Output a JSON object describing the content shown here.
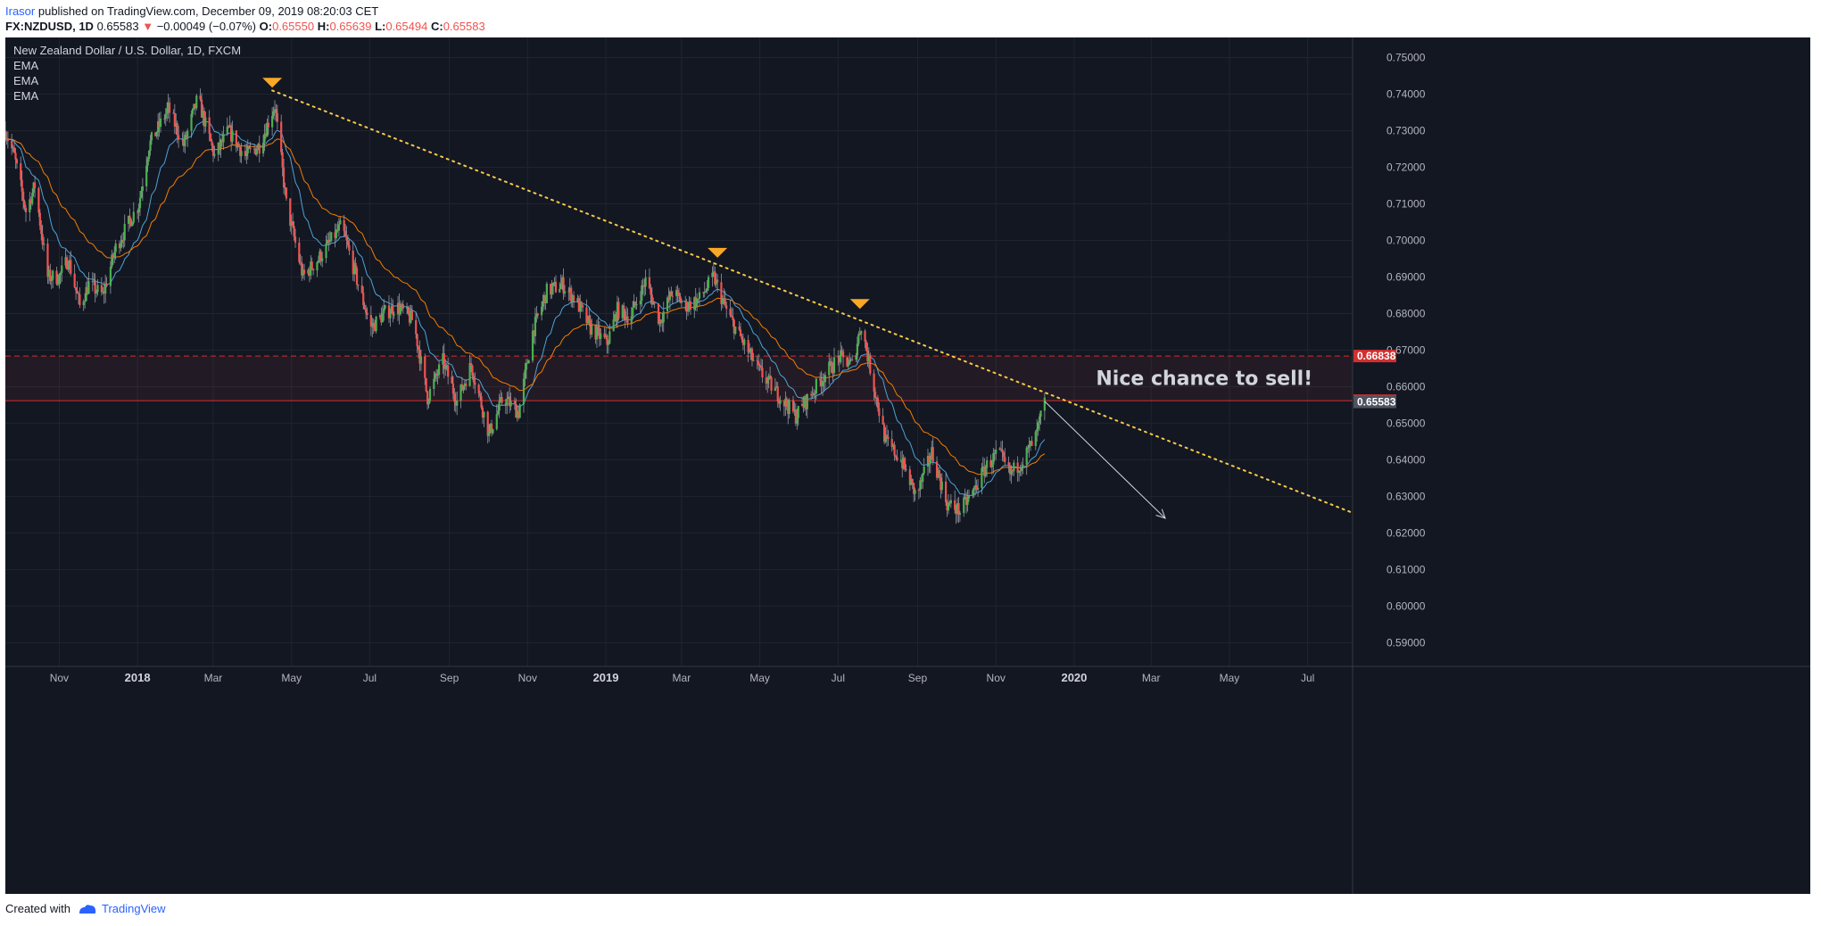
{
  "header": {
    "author": "Irasor",
    "published_text": "published on TradingView.com, December 09, 2019 08:20:03 CET",
    "symbol": "FX:NZDUSD, 1D",
    "last": "0.65583",
    "change_arrow": "▼",
    "change": "−0.00049 (−0.07%)",
    "o_label": "O:",
    "o_value": "0.65550",
    "h_label": "H:",
    "h_value": "0.65639",
    "l_label": "L:",
    "l_value": "0.65494",
    "c_label": "C:",
    "c_value": "0.65583"
  },
  "footer": {
    "created_with": "Created with",
    "brand": "TradingView"
  },
  "chart_data": {
    "type": "candlestick",
    "title": "New Zealand Dollar / U.S. Dollar, 1D, FXCM",
    "indicators": [
      "EMA",
      "EMA",
      "EMA"
    ],
    "y_axis": {
      "ticks": [
        "0.75000",
        "0.74000",
        "0.73000",
        "0.72000",
        "0.71000",
        "0.70000",
        "0.69000",
        "0.68000",
        "0.67000",
        "0.66000",
        "0.65000",
        "0.64000",
        "0.63000",
        "0.62000",
        "0.61000",
        "0.60000",
        "0.59000"
      ],
      "ylim": [
        0.5835,
        0.7555
      ],
      "position": "right"
    },
    "x_axis": {
      "ticks": [
        "Nov",
        "2018",
        "Mar",
        "May",
        "Jul",
        "Sep",
        "Nov",
        "2019",
        "Mar",
        "May",
        "Jul",
        "Sep",
        "Nov",
        "2020",
        "Mar",
        "May",
        "Jul"
      ],
      "tick_dates": [
        "2017-11-01",
        "2018-01-01",
        "2018-03-01",
        "2018-05-01",
        "2018-07-01",
        "2018-09-01",
        "2018-11-01",
        "2019-01-01",
        "2019-03-01",
        "2019-05-01",
        "2019-07-01",
        "2019-09-01",
        "2019-11-01",
        "2020-01-01",
        "2020-03-01",
        "2020-05-01",
        "2020-07-01"
      ],
      "xlim": [
        "2017-09-20",
        "2020-08-05"
      ]
    },
    "price_path": [
      {
        "date": "2017-09-20",
        "price": 0.73
      },
      {
        "date": "2017-09-27",
        "price": 0.723
      },
      {
        "date": "2017-10-06",
        "price": 0.708
      },
      {
        "date": "2017-10-13",
        "price": 0.715
      },
      {
        "date": "2017-10-23",
        "price": 0.69
      },
      {
        "date": "2017-11-01",
        "price": 0.69
      },
      {
        "date": "2017-11-08",
        "price": 0.695
      },
      {
        "date": "2017-11-17",
        "price": 0.682
      },
      {
        "date": "2017-11-24",
        "price": 0.688
      },
      {
        "date": "2017-12-05",
        "price": 0.685
      },
      {
        "date": "2017-12-15",
        "price": 0.698
      },
      {
        "date": "2018-01-02",
        "price": 0.71
      },
      {
        "date": "2018-01-10",
        "price": 0.726
      },
      {
        "date": "2018-01-25",
        "price": 0.736
      },
      {
        "date": "2018-02-06",
        "price": 0.726
      },
      {
        "date": "2018-02-17",
        "price": 0.739
      },
      {
        "date": "2018-03-02",
        "price": 0.723
      },
      {
        "date": "2018-03-13",
        "price": 0.73
      },
      {
        "date": "2018-03-26",
        "price": 0.723
      },
      {
        "date": "2018-04-06",
        "price": 0.726
      },
      {
        "date": "2018-04-18",
        "price": 0.737
      },
      {
        "date": "2018-04-27",
        "price": 0.71
      },
      {
        "date": "2018-05-10",
        "price": 0.69
      },
      {
        "date": "2018-05-22",
        "price": 0.695
      },
      {
        "date": "2018-06-01",
        "price": 0.7
      },
      {
        "date": "2018-06-09",
        "price": 0.704
      },
      {
        "date": "2018-06-22",
        "price": 0.688
      },
      {
        "date": "2018-07-02",
        "price": 0.676
      },
      {
        "date": "2018-07-12",
        "price": 0.68
      },
      {
        "date": "2018-07-22",
        "price": 0.682
      },
      {
        "date": "2018-08-04",
        "price": 0.678
      },
      {
        "date": "2018-08-15",
        "price": 0.657
      },
      {
        "date": "2018-08-27",
        "price": 0.667
      },
      {
        "date": "2018-09-07",
        "price": 0.656
      },
      {
        "date": "2018-09-18",
        "price": 0.666
      },
      {
        "date": "2018-10-02",
        "price": 0.647
      },
      {
        "date": "2018-10-13",
        "price": 0.657
      },
      {
        "date": "2018-10-25",
        "price": 0.653
      },
      {
        "date": "2018-11-05",
        "price": 0.675
      },
      {
        "date": "2018-11-16",
        "price": 0.686
      },
      {
        "date": "2018-11-28",
        "price": 0.688
      },
      {
        "date": "2018-12-08",
        "price": 0.684
      },
      {
        "date": "2018-12-20",
        "price": 0.676
      },
      {
        "date": "2019-01-02",
        "price": 0.672
      },
      {
        "date": "2019-01-10",
        "price": 0.681
      },
      {
        "date": "2019-01-20",
        "price": 0.679
      },
      {
        "date": "2019-02-01",
        "price": 0.689
      },
      {
        "date": "2019-02-12",
        "price": 0.678
      },
      {
        "date": "2019-02-22",
        "price": 0.686
      },
      {
        "date": "2019-03-04",
        "price": 0.682
      },
      {
        "date": "2019-03-15",
        "price": 0.684
      },
      {
        "date": "2019-03-26",
        "price": 0.69
      },
      {
        "date": "2019-04-06",
        "price": 0.68
      },
      {
        "date": "2019-04-18",
        "price": 0.672
      },
      {
        "date": "2019-05-01",
        "price": 0.664
      },
      {
        "date": "2019-05-15",
        "price": 0.658
      },
      {
        "date": "2019-05-29",
        "price": 0.652
      },
      {
        "date": "2019-06-10",
        "price": 0.658
      },
      {
        "date": "2019-06-22",
        "price": 0.664
      },
      {
        "date": "2019-07-02",
        "price": 0.668
      },
      {
        "date": "2019-07-12",
        "price": 0.666
      },
      {
        "date": "2019-07-19",
        "price": 0.677
      },
      {
        "date": "2019-07-29",
        "price": 0.66
      },
      {
        "date": "2019-08-07",
        "price": 0.645
      },
      {
        "date": "2019-08-19",
        "price": 0.64
      },
      {
        "date": "2019-08-31",
        "price": 0.63
      },
      {
        "date": "2019-09-12",
        "price": 0.642
      },
      {
        "date": "2019-09-24",
        "price": 0.628
      },
      {
        "date": "2019-10-04",
        "price": 0.626
      },
      {
        "date": "2019-10-14",
        "price": 0.631
      },
      {
        "date": "2019-10-24",
        "price": 0.638
      },
      {
        "date": "2019-11-03",
        "price": 0.642
      },
      {
        "date": "2019-11-12",
        "price": 0.636
      },
      {
        "date": "2019-11-22",
        "price": 0.64
      },
      {
        "date": "2019-12-02",
        "price": 0.646
      },
      {
        "date": "2019-12-09",
        "price": 0.6558
      }
    ],
    "price_labels": [
      {
        "value": 0.66838,
        "text": "0.66838",
        "color": "#d32f2f",
        "style": "dashed"
      },
      {
        "value": 0.65617,
        "text": "0.65617",
        "color": "#d32f2f",
        "style": "solid"
      },
      {
        "value": 0.65583,
        "text": "0.65583",
        "color": "#4c525e",
        "style": "last"
      }
    ],
    "zone": {
      "top": 0.66838,
      "bottom": 0.65617,
      "color": "#ef5350"
    },
    "trendline": {
      "start": {
        "date": "2018-04-16",
        "price": 0.741
      },
      "end": {
        "date": "2020-08-05",
        "price": 0.6255
      },
      "color": "#f7c948",
      "style": "dotted"
    },
    "arrow": {
      "start": {
        "date": "2019-12-09",
        "price": 0.656
      },
      "end": {
        "date": "2020-03-12",
        "price": 0.624
      },
      "color": "#d1d4dc"
    },
    "markers": [
      {
        "date": "2018-04-16",
        "price": 0.7425
      },
      {
        "date": "2019-03-29",
        "price": 0.696
      },
      {
        "date": "2019-07-18",
        "price": 0.682
      }
    ],
    "annotation": {
      "text": "Nice chance to sell!",
      "date": "2020-01-18",
      "price": 0.6605
    },
    "colors": {
      "background": "#131722",
      "up": "#4caf50",
      "down": "#ef5350",
      "ema_fast": "#4da3d8",
      "ema_slow": "#f57c00",
      "grid": "#1f2430",
      "text": "#b2b5be"
    }
  }
}
